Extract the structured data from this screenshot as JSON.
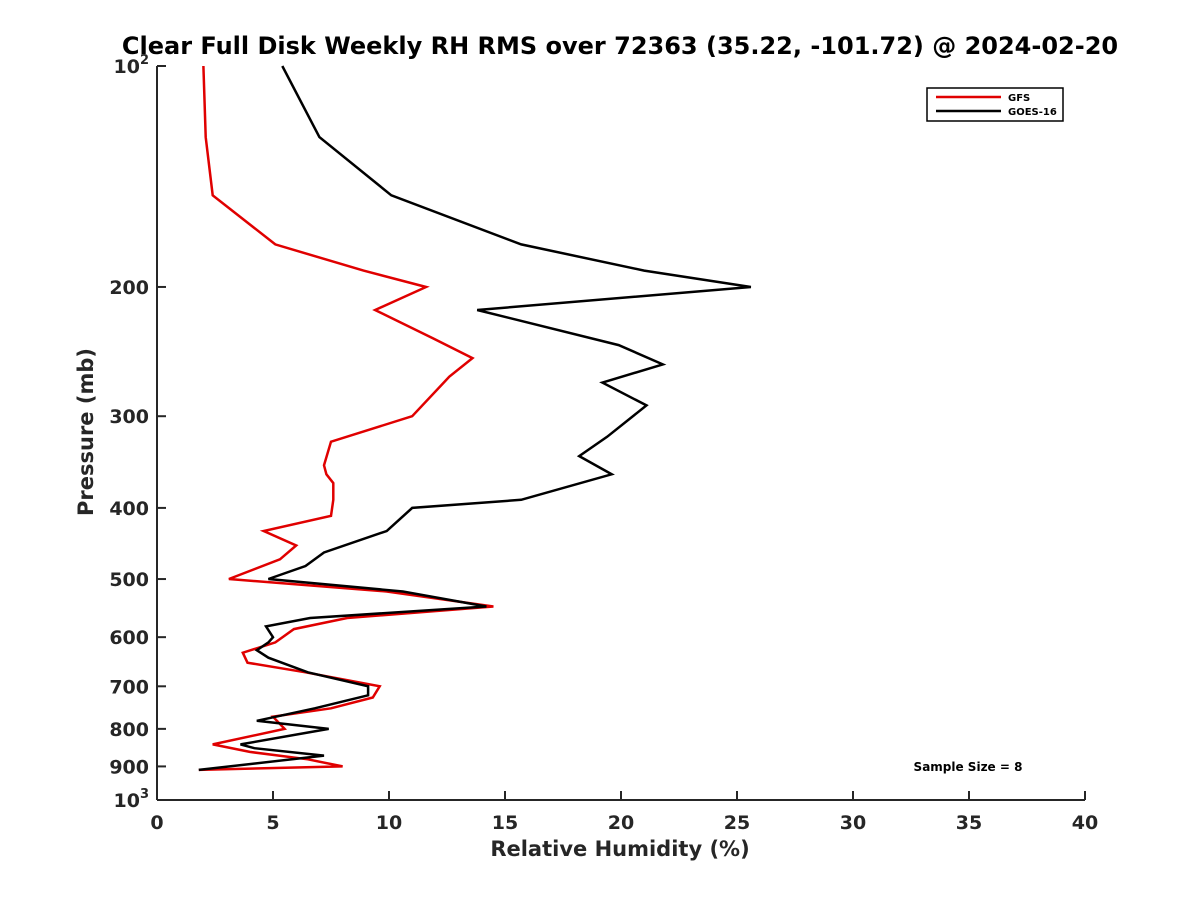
{
  "chart_data": {
    "type": "line",
    "title": "Clear Full Disk Weekly RH RMS over 72363 (35.22, -101.72) @ 2024-02-20",
    "xlabel": "Relative Humidity (%)",
    "ylabel": "Pressure (mb)",
    "xlim": [
      0,
      40
    ],
    "ylim": [
      100,
      1000
    ],
    "yscale": "log",
    "yreversed": true,
    "x_ticks": [
      0,
      5,
      10,
      15,
      20,
      25,
      30,
      35,
      40
    ],
    "y_ticks": [
      {
        "value": 100,
        "base": "10",
        "exp": "2"
      },
      {
        "value": 200,
        "label": "200"
      },
      {
        "value": 300,
        "label": "300"
      },
      {
        "value": 400,
        "label": "400"
      },
      {
        "value": 500,
        "label": "500"
      },
      {
        "value": 600,
        "label": "600"
      },
      {
        "value": 700,
        "label": "700"
      },
      {
        "value": 800,
        "label": "800"
      },
      {
        "value": 900,
        "label": "900"
      },
      {
        "value": 1000,
        "base": "10",
        "exp": "3"
      }
    ],
    "legend_position": "top-right",
    "annotation": "Sample Size = 8",
    "series": [
      {
        "name": "GFS",
        "color": "#e00000",
        "points": [
          [
            2.0,
            100
          ],
          [
            2.1,
            125
          ],
          [
            2.4,
            150
          ],
          [
            5.1,
            175
          ],
          [
            8.9,
            190
          ],
          [
            11.6,
            200
          ],
          [
            9.4,
            215
          ],
          [
            11.9,
            235
          ],
          [
            13.6,
            250
          ],
          [
            12.6,
            265
          ],
          [
            11.0,
            300
          ],
          [
            7.5,
            325
          ],
          [
            7.2,
            350
          ],
          [
            7.3,
            360
          ],
          [
            7.6,
            370
          ],
          [
            7.6,
            390
          ],
          [
            7.5,
            410
          ],
          [
            4.6,
            430
          ],
          [
            6.0,
            450
          ],
          [
            5.3,
            470
          ],
          [
            3.1,
            500
          ],
          [
            9.9,
            520
          ],
          [
            14.5,
            545
          ],
          [
            8.2,
            565
          ],
          [
            5.9,
            585
          ],
          [
            5.1,
            610
          ],
          [
            3.7,
            630
          ],
          [
            3.9,
            650
          ],
          [
            6.4,
            670
          ],
          [
            9.6,
            700
          ],
          [
            9.3,
            725
          ],
          [
            7.5,
            750
          ],
          [
            5.0,
            770
          ],
          [
            5.5,
            800
          ],
          [
            2.4,
            840
          ],
          [
            4.0,
            860
          ],
          [
            6.5,
            880
          ],
          [
            8.0,
            900
          ],
          [
            1.8,
            910
          ]
        ]
      },
      {
        "name": "GOES-16",
        "color": "#000000",
        "points": [
          [
            5.4,
            100
          ],
          [
            7.0,
            125
          ],
          [
            10.1,
            150
          ],
          [
            15.7,
            175
          ],
          [
            21.0,
            190
          ],
          [
            25.6,
            200
          ],
          [
            13.8,
            215
          ],
          [
            19.9,
            240
          ],
          [
            21.8,
            255
          ],
          [
            19.2,
            270
          ],
          [
            21.1,
            290
          ],
          [
            19.4,
            320
          ],
          [
            18.2,
            340
          ],
          [
            19.6,
            360
          ],
          [
            15.7,
            390
          ],
          [
            11.0,
            400
          ],
          [
            9.9,
            430
          ],
          [
            7.2,
            460
          ],
          [
            6.4,
            480
          ],
          [
            4.8,
            500
          ],
          [
            10.6,
            520
          ],
          [
            14.2,
            545
          ],
          [
            6.6,
            565
          ],
          [
            4.7,
            580
          ],
          [
            5.0,
            600
          ],
          [
            4.8,
            610
          ],
          [
            4.3,
            625
          ],
          [
            4.8,
            640
          ],
          [
            6.5,
            670
          ],
          [
            9.1,
            700
          ],
          [
            9.1,
            720
          ],
          [
            6.8,
            750
          ],
          [
            4.3,
            780
          ],
          [
            7.4,
            800
          ],
          [
            3.6,
            840
          ],
          [
            4.2,
            850
          ],
          [
            7.2,
            870
          ],
          [
            1.8,
            910
          ]
        ]
      }
    ]
  }
}
